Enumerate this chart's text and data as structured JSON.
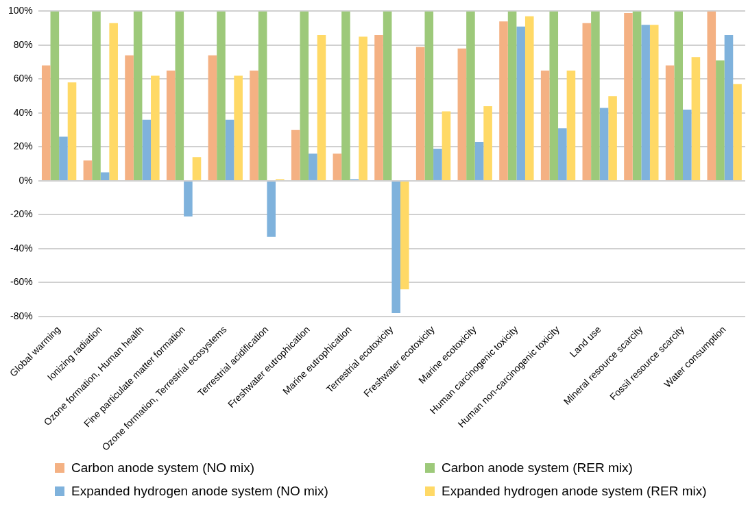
{
  "chart_data": {
    "type": "bar",
    "categories": [
      "Global warming",
      "Ionizing radiation",
      "Ozone formation, Human health",
      "Fine particulate matter formation",
      "Ozone formation, Terrestrial ecosystems",
      "Terrestrial acidification",
      "Freshwater eutrophication",
      "Marine eutrophication",
      "Terrestrial ecotoxicity",
      "Freshwater ecotoxicity",
      "Marine ecotoxicity",
      "Human carcinogenic toxicity",
      "Human non-carcinogenic toxicity",
      "Land use",
      "Mineral resource scarcity",
      "Fossil resource scarcity",
      "Water consumption"
    ],
    "series": [
      {
        "name": "Carbon anode system (NO mix)",
        "color": "#f4b183",
        "values": [
          68,
          12,
          74,
          65,
          74,
          65,
          30,
          16,
          86,
          79,
          78,
          94,
          65,
          93,
          99,
          68,
          100
        ]
      },
      {
        "name": "Carbon anode system (RER mix)",
        "color": "#9dc97a",
        "values": [
          100,
          100,
          100,
          100,
          100,
          100,
          100,
          100,
          100,
          100,
          100,
          100,
          100,
          100,
          100,
          100,
          71
        ]
      },
      {
        "name": "Expanded hydrogen anode system (NO mix)",
        "color": "#7fb2dc",
        "values": [
          26,
          5,
          36,
          -21,
          36,
          -33,
          16,
          1,
          -78,
          19,
          23,
          91,
          31,
          43,
          92,
          42,
          86
        ]
      },
      {
        "name": "Expanded hydrogen anode system (RER mix)",
        "color": "#ffd966",
        "values": [
          58,
          93,
          62,
          14,
          62,
          1,
          86,
          85,
          -64,
          41,
          44,
          97,
          65,
          50,
          92,
          73,
          57
        ]
      }
    ],
    "ylim": [
      -80,
      100
    ],
    "yticks": [
      {
        "value": -80,
        "label": "-80%"
      },
      {
        "value": -60,
        "label": "-60%"
      },
      {
        "value": -40,
        "label": "-40%"
      },
      {
        "value": -20,
        "label": "-20%"
      },
      {
        "value": 0,
        "label": "0%"
      },
      {
        "value": 20,
        "label": "20%"
      },
      {
        "value": 40,
        "label": "40%"
      },
      {
        "value": 60,
        "label": "60%"
      },
      {
        "value": 80,
        "label": "80%"
      },
      {
        "value": 100,
        "label": "100%"
      }
    ],
    "grid": "y",
    "legend": "bottom"
  }
}
